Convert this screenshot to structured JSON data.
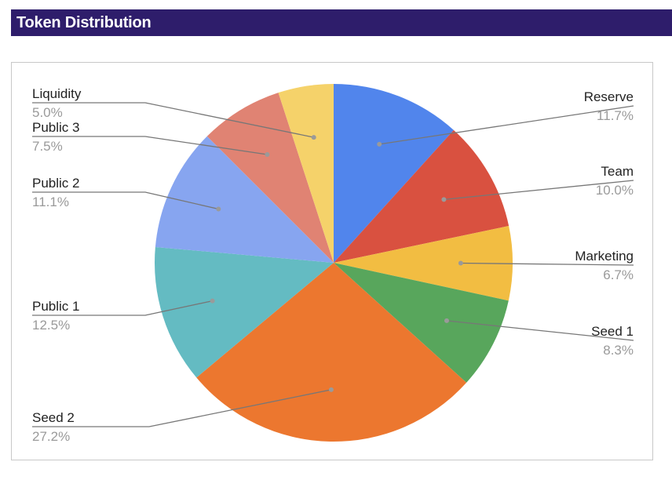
{
  "header": {
    "title": "Token Distribution"
  },
  "chart_data": {
    "type": "pie",
    "title": "Token Distribution",
    "slices": [
      {
        "label": "Reserve",
        "value": 11.7,
        "pct_text": "11.7%",
        "color": "#5185ec"
      },
      {
        "label": "Team",
        "value": 10.0,
        "pct_text": "10.0%",
        "color": "#d95140"
      },
      {
        "label": "Marketing",
        "value": 6.7,
        "pct_text": "6.7%",
        "color": "#f2bd42"
      },
      {
        "label": "Seed 1",
        "value": 8.3,
        "pct_text": "8.3%",
        "color": "#58a65c"
      },
      {
        "label": "Seed 2",
        "value": 27.2,
        "pct_text": "27.2%",
        "color": "#ec772f"
      },
      {
        "label": "Public 1",
        "value": 12.5,
        "pct_text": "12.5%",
        "color": "#64bbc2"
      },
      {
        "label": "Public 2",
        "value": 11.1,
        "pct_text": "11.1%",
        "color": "#87a5f0"
      },
      {
        "label": "Public 3",
        "value": 7.5,
        "pct_text": "7.5%",
        "color": "#e08373"
      },
      {
        "label": "Liquidity",
        "value": 5.0,
        "pct_text": "5.0%",
        "color": "#f5d26a"
      }
    ],
    "label_placement": "outside with leader lines"
  }
}
